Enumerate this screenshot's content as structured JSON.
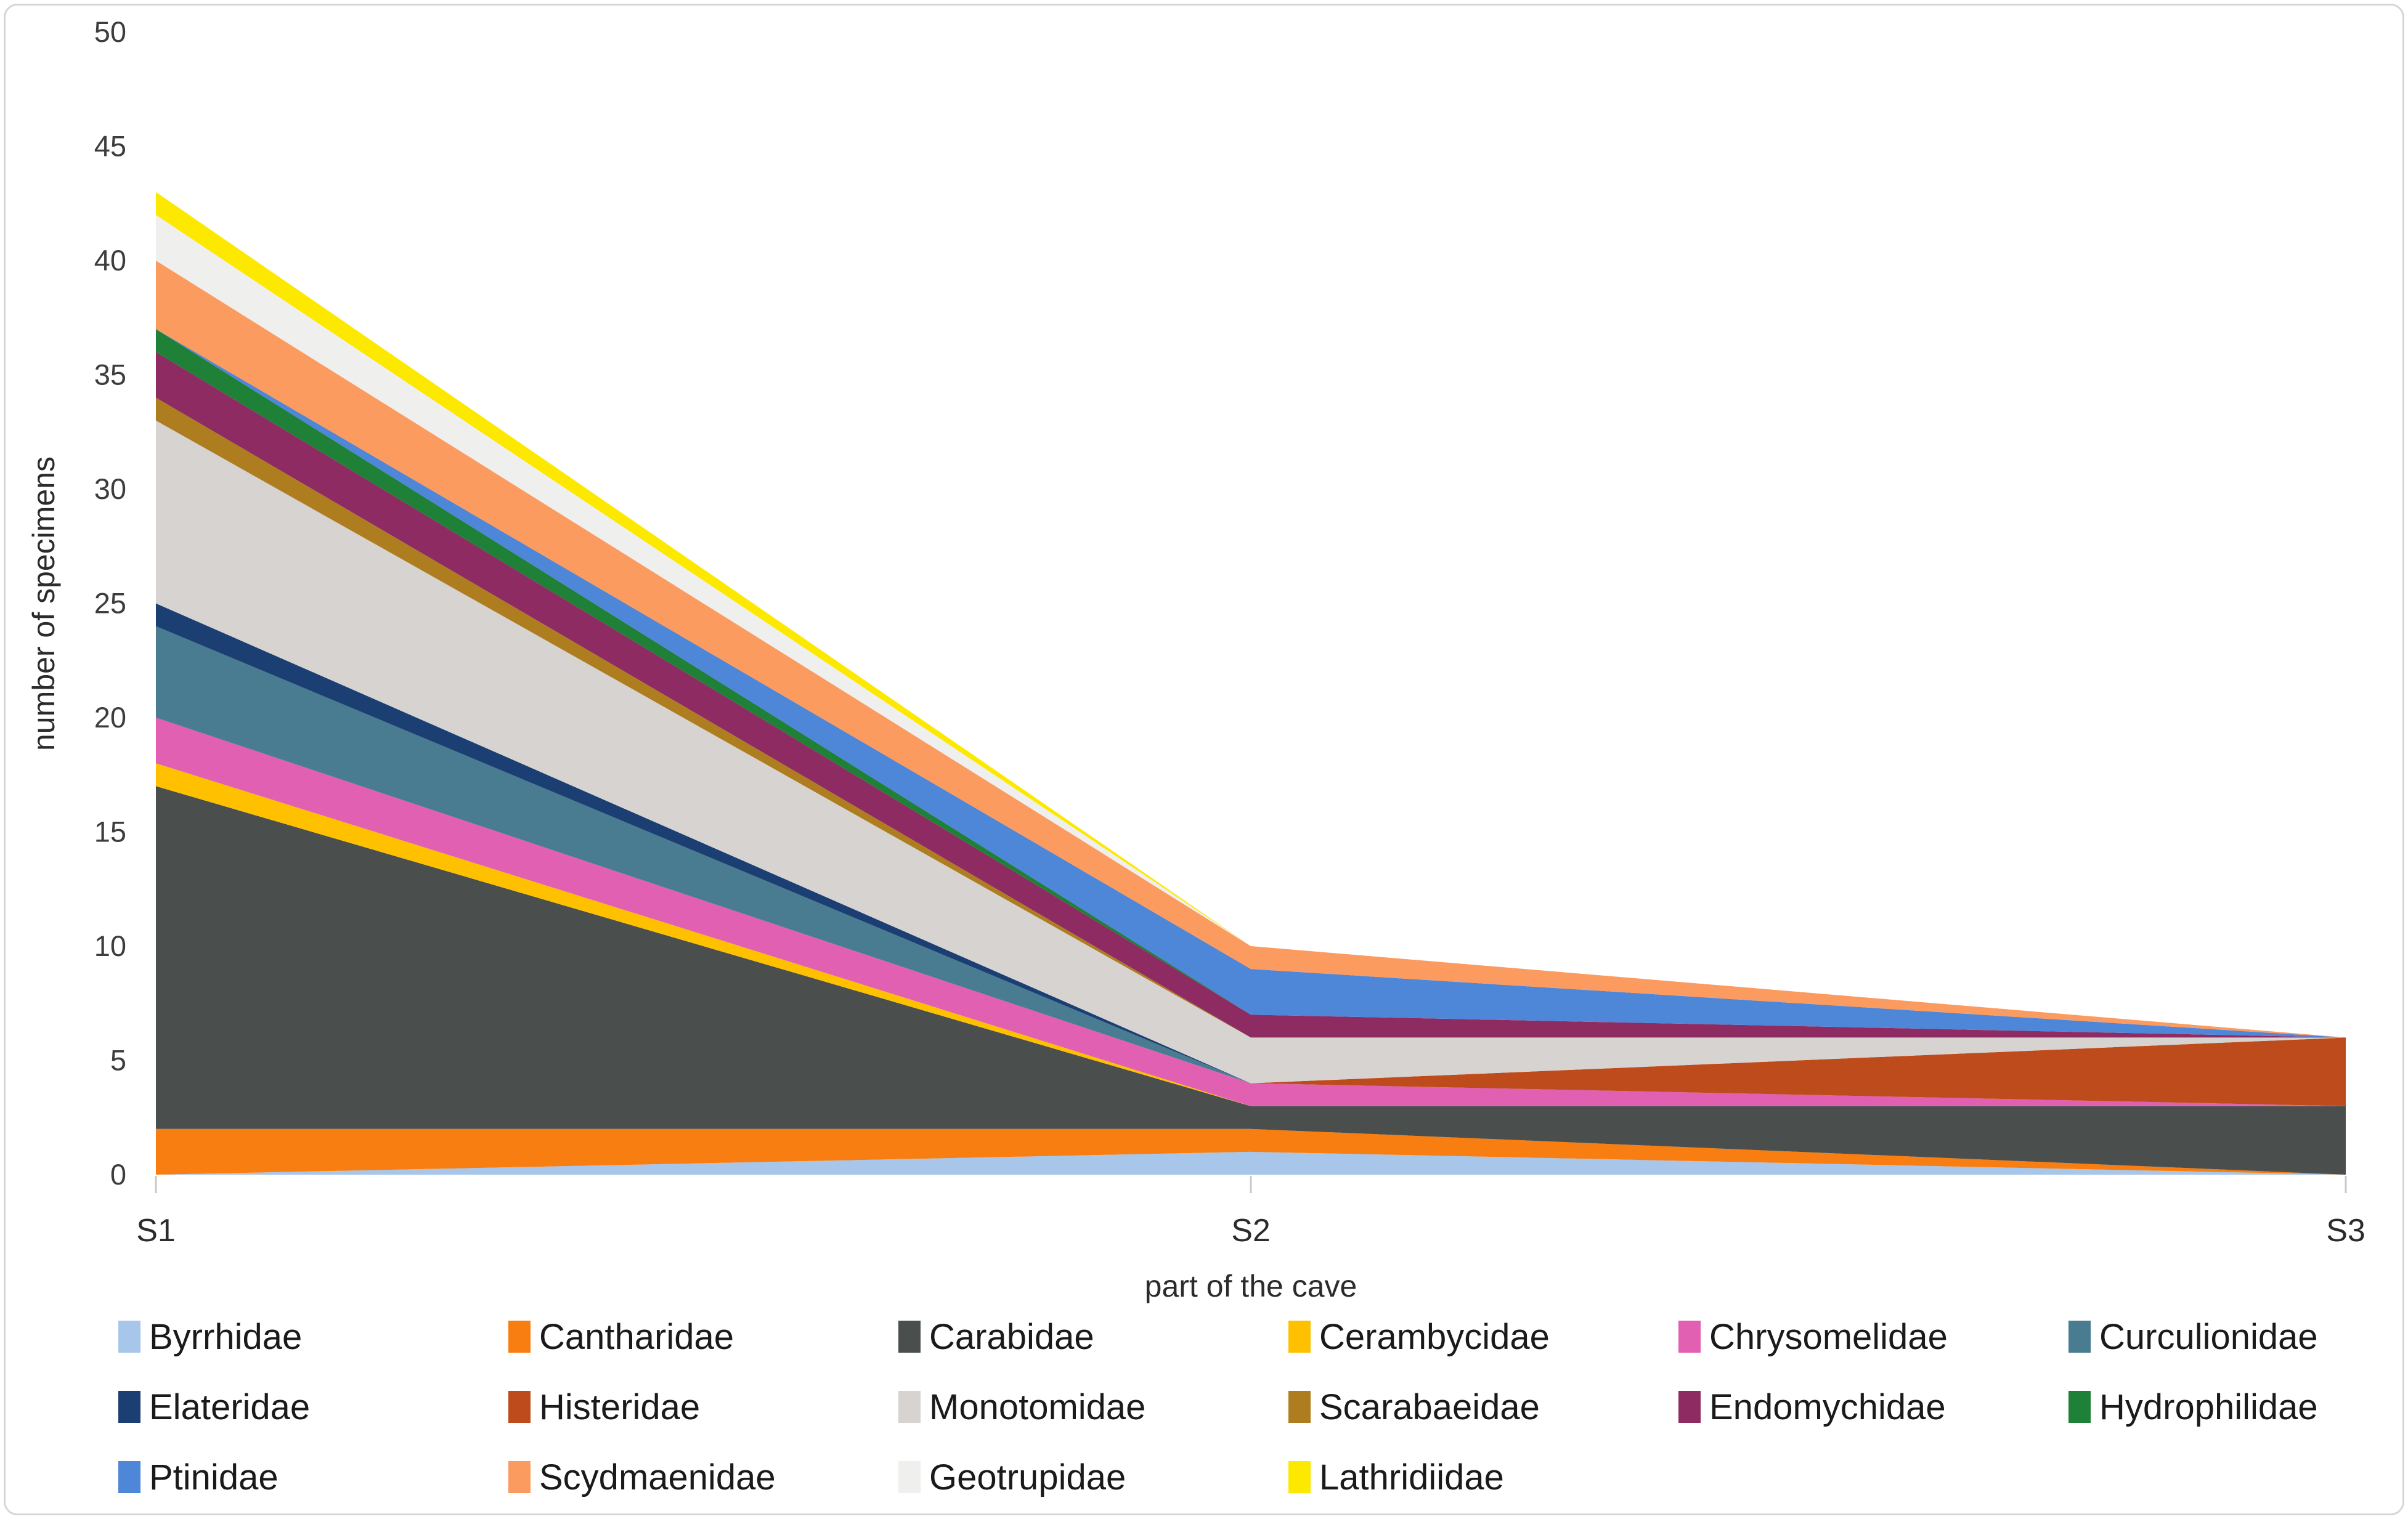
{
  "figure": {
    "border_color": "#d6d6d6",
    "background": "#ffffff"
  },
  "axes": {
    "xlabel": "part of the cave",
    "ylabel": "number of specimens"
  },
  "chart_data": {
    "type": "area",
    "stacked": true,
    "title": "",
    "xlabel": "part of the cave",
    "ylabel": "number of specimens",
    "categories": [
      "S1",
      "S2",
      "S3"
    ],
    "y_ticks": [
      0,
      5,
      10,
      15,
      20,
      25,
      30,
      35,
      40,
      45,
      50
    ],
    "ylim": [
      0,
      50
    ],
    "grid": false,
    "legend_position": "bottom",
    "legend_columns": 6,
    "stack_totals": [
      43,
      10,
      6
    ],
    "series": [
      {
        "name": "Byrrhidae",
        "color": "#A7C6E9",
        "values": [
          0,
          1,
          0
        ]
      },
      {
        "name": "Cantharidae",
        "color": "#F87E11",
        "values": [
          2,
          1,
          0
        ]
      },
      {
        "name": "Carabidae",
        "color": "#4A4F4D",
        "values": [
          15,
          1,
          3
        ]
      },
      {
        "name": "Cerambycidae",
        "color": "#FFC000",
        "values": [
          1,
          0,
          0
        ]
      },
      {
        "name": "Chrysomelidae",
        "color": "#E160B2",
        "values": [
          2,
          1,
          0
        ]
      },
      {
        "name": "Curculionidae",
        "color": "#497B91",
        "values": [
          4,
          0,
          0
        ]
      },
      {
        "name": "Elateridae",
        "color": "#1B3F72",
        "values": [
          1,
          0,
          0
        ]
      },
      {
        "name": "Histeridae",
        "color": "#BE4B1C",
        "values": [
          0,
          0,
          3
        ]
      },
      {
        "name": "Monotomidae",
        "color": "#D6D3D0",
        "values": [
          8,
          2,
          0
        ]
      },
      {
        "name": "Scarabaeidae",
        "color": "#AD7D20",
        "values": [
          1,
          0,
          0
        ]
      },
      {
        "name": "Endomychidae",
        "color": "#8E2B62",
        "values": [
          2,
          1,
          0
        ]
      },
      {
        "name": "Hydrophilidae",
        "color": "#1F8038",
        "values": [
          1,
          0,
          0
        ]
      },
      {
        "name": "Ptinidae",
        "color": "#4E86D8",
        "values": [
          0,
          2,
          0
        ]
      },
      {
        "name": "Scydmaenidae",
        "color": "#FB9B5F",
        "values": [
          3,
          1,
          0
        ]
      },
      {
        "name": "Geotrupidae",
        "color": "#EFEFED",
        "values": [
          2,
          0,
          0
        ]
      },
      {
        "name": "Lathridiidae",
        "color": "#FDE900",
        "values": [
          1,
          0,
          0
        ]
      }
    ]
  }
}
